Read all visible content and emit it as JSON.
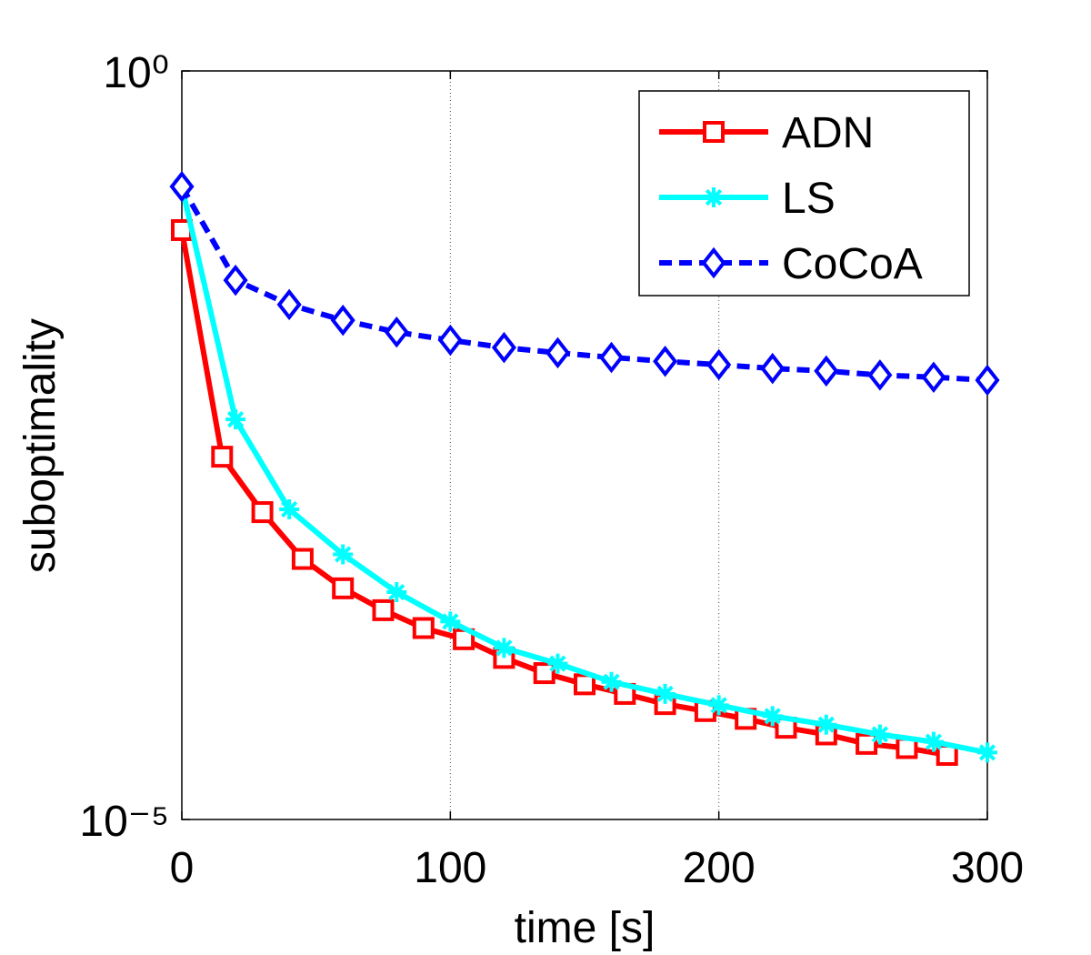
{
  "chart_data": {
    "type": "line",
    "xlabel": "time [s]",
    "ylabel": "suboptimality",
    "xlim": [
      0,
      300
    ],
    "xticks": [
      0,
      100,
      200,
      300
    ],
    "ylim": [
      1e-05,
      1
    ],
    "yticks": [
      {
        "value": 1,
        "label": "10⁰"
      },
      {
        "value": 1e-05,
        "label": "10⁻⁵"
      }
    ],
    "yscale": "log",
    "grid": "x",
    "legend": "upper right",
    "series": [
      {
        "name": "ADN",
        "color": "#ff0000",
        "marker": "square",
        "linestyle": "solid",
        "x": [
          0,
          15,
          30,
          45,
          60,
          75,
          90,
          105,
          120,
          135,
          150,
          165,
          180,
          195,
          210,
          225,
          240,
          255,
          270,
          285
        ],
        "values": [
          0.0865,
          0.00265,
          0.00113,
          0.00055,
          0.00035,
          0.00025,
          0.00019,
          0.00016,
          0.00012,
          9.5e-05,
          8e-05,
          6.9e-05,
          5.9e-05,
          5.3e-05,
          4.7e-05,
          4.1e-05,
          3.7e-05,
          3.2e-05,
          3e-05,
          2.7e-05
        ]
      },
      {
        "name": "LS",
        "color": "#00ffff",
        "marker": "asterisk",
        "linestyle": "solid",
        "x": [
          0,
          20,
          40,
          60,
          80,
          100,
          120,
          140,
          160,
          180,
          200,
          220,
          240,
          260,
          280,
          300
        ],
        "values": [
          0.169,
          0.0047,
          0.00118,
          0.00059,
          0.00033,
          0.00021,
          0.00014,
          0.00011,
          8.3e-05,
          6.9e-05,
          5.8e-05,
          4.9e-05,
          4.3e-05,
          3.7e-05,
          3.3e-05,
          2.8e-05
        ]
      },
      {
        "name": "CoCoA",
        "color": "#0000ff",
        "marker": "diamond",
        "linestyle": "dashed",
        "x": [
          0,
          20,
          40,
          60,
          80,
          100,
          120,
          140,
          160,
          180,
          200,
          220,
          240,
          260,
          280,
          300
        ],
        "values": [
          0.169,
          0.04,
          0.0275,
          0.0216,
          0.018,
          0.0159,
          0.0142,
          0.0131,
          0.0122,
          0.0115,
          0.0109,
          0.0103,
          0.0099,
          0.0093,
          0.009,
          0.0086
        ]
      }
    ]
  }
}
